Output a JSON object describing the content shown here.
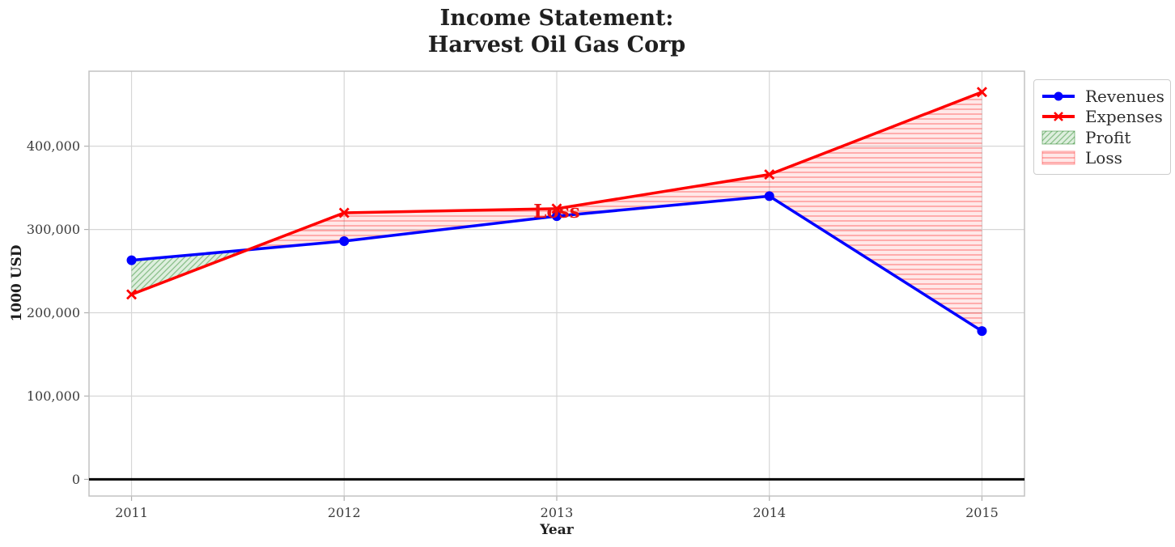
{
  "title": {
    "line1": "Income Statement:",
    "line2": "Harvest Oil Gas Corp"
  },
  "legend": {
    "items": [
      {
        "label": "Revenues"
      },
      {
        "label": "Expenses"
      },
      {
        "label": "Profit"
      },
      {
        "label": "Loss"
      }
    ]
  },
  "chart_data": {
    "type": "line",
    "title": "Income Statement:\nHarvest Oil Gas Corp",
    "xlabel": "Year",
    "ylabel": "1000 USD",
    "x": [
      2011,
      2012,
      2013,
      2014,
      2015
    ],
    "series": [
      {
        "name": "Revenues",
        "color": "#0000ff",
        "marker": "circle",
        "values": [
          263000,
          286000,
          316000,
          340000,
          178000
        ]
      },
      {
        "name": "Expenses",
        "color": "#ff0000",
        "marker": "x",
        "values": [
          222000,
          320000,
          325000,
          366000,
          465000
        ]
      }
    ],
    "fills": [
      {
        "name": "Profit",
        "condition": "revenues_above_expenses",
        "color": "#008000",
        "hatch": "diagonal"
      },
      {
        "name": "Loss",
        "condition": "expenses_above_revenues",
        "color": "#ff0000",
        "hatch": "horizontal"
      }
    ],
    "annotation": {
      "text": "Loss",
      "x": 2013,
      "y": 322000,
      "color": "#ee1111"
    },
    "xticks": [
      2011,
      2012,
      2013,
      2014,
      2015
    ],
    "yticks": [
      0,
      100000,
      200000,
      300000,
      400000
    ],
    "xlim": [
      2010.8,
      2015.2
    ],
    "ylim": [
      -20000,
      490000
    ],
    "grid": true,
    "zero_line": true,
    "legend_position": "upper right outside"
  }
}
